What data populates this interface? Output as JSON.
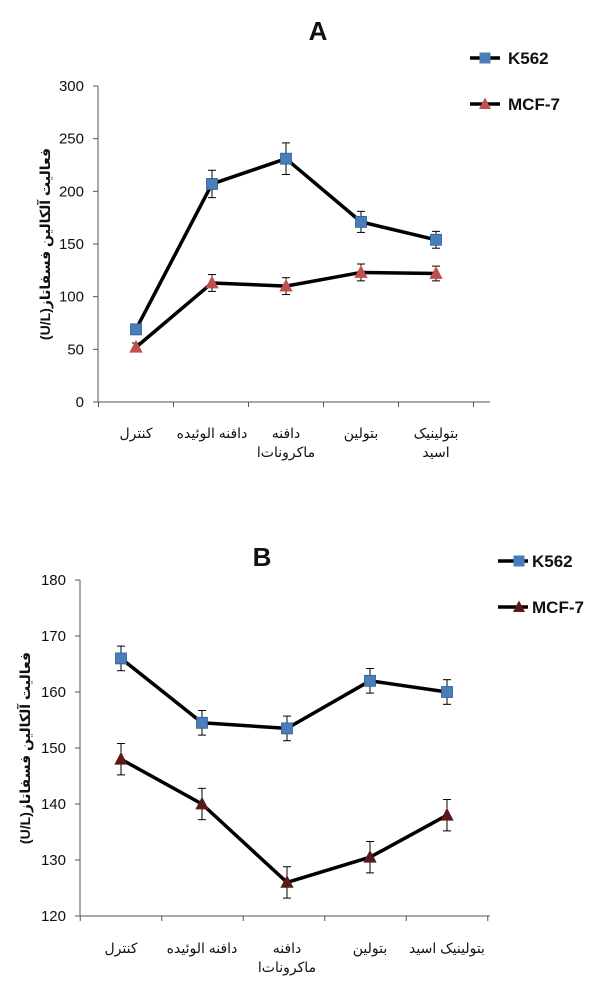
{
  "chart_data": [
    {
      "type": "line",
      "title": "A",
      "ylabel": "فعالیت آلکالین فسفاتاز (U/L)",
      "ylabel_lines": [
        "فعالیت آلکالین فسفاتاز",
        "(U/L)"
      ],
      "ylim": [
        0,
        300
      ],
      "yticks": [
        0,
        50,
        100,
        150,
        200,
        250,
        300
      ],
      "categories": [
        "کنترل",
        "دافنه الوئیده",
        "دافنه ماکرونات‌ا",
        "بتولین",
        "بتولینیک اسید"
      ],
      "category_lines": [
        [
          "کنترل"
        ],
        [
          "دافنه الوئیده"
        ],
        [
          "دافنه",
          "ماکرونات‌ا"
        ],
        [
          "بتولین"
        ],
        [
          "بتولینیک",
          "اسید"
        ]
      ],
      "legend_position": "top-right",
      "grid": false,
      "series": [
        {
          "name": "K562",
          "marker": "square",
          "color": "#4a7ebb",
          "values": [
            69,
            207,
            231,
            171,
            154
          ],
          "errors": [
            5,
            13,
            15,
            10,
            8
          ]
        },
        {
          "name": "MCF-7",
          "marker": "triangle",
          "color": "#c0504d",
          "values": [
            52,
            113,
            110,
            123,
            122
          ],
          "errors": [
            4,
            8,
            8,
            8,
            7
          ]
        }
      ]
    },
    {
      "type": "line",
      "title": "B",
      "ylabel": "فعالیت آلکالین فسفاتاز (U/L)",
      "ylabel_lines": [
        "فعالیت آلکالین فسفاتاز",
        "(U/L)"
      ],
      "ylim": [
        120,
        180
      ],
      "yticks": [
        120,
        130,
        140,
        150,
        160,
        170,
        180
      ],
      "categories": [
        "کنترل",
        "دافنه الوئیده",
        "دافنه ماکرونات‌ا",
        "بتولین",
        "بتولینیک اسید"
      ],
      "category_lines": [
        [
          "کنترل"
        ],
        [
          "دافنه الوئیده"
        ],
        [
          "دافنه",
          "ماکرونات‌ا"
        ],
        [
          "بتولین"
        ],
        [
          "بتولینیک اسید"
        ]
      ],
      "legend_position": "top-right",
      "grid": false,
      "series": [
        {
          "name": "K562",
          "marker": "square",
          "color": "#4a7ebb",
          "values": [
            166,
            154.5,
            153.5,
            162,
            160
          ],
          "errors": [
            2.2,
            2.2,
            2.2,
            2.2,
            2.2
          ]
        },
        {
          "name": "MCF-7",
          "marker": "triangle",
          "color": "#5a1a1a",
          "values": [
            148,
            140,
            126,
            130.5,
            138
          ],
          "errors": [
            2.8,
            2.8,
            2.8,
            2.8,
            2.8
          ]
        }
      ]
    }
  ]
}
